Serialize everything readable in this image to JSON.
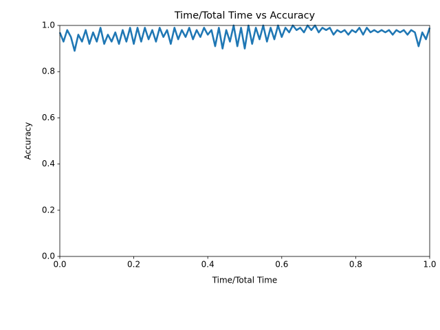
{
  "chart_data": {
    "type": "line",
    "title": "Time/Total Time vs Accuracy",
    "xlabel": "Time/Total Time",
    "ylabel": "Accuracy",
    "x": [
      0.0,
      0.01,
      0.02,
      0.03,
      0.04,
      0.05,
      0.06,
      0.07,
      0.08,
      0.09,
      0.1,
      0.11,
      0.12,
      0.13,
      0.14,
      0.15,
      0.16,
      0.17,
      0.18,
      0.19,
      0.2,
      0.21,
      0.22,
      0.23,
      0.24,
      0.25,
      0.26,
      0.27,
      0.28,
      0.29,
      0.3,
      0.31,
      0.32,
      0.33,
      0.34,
      0.35,
      0.36,
      0.37,
      0.38,
      0.39,
      0.4,
      0.41,
      0.42,
      0.43,
      0.44,
      0.45,
      0.46,
      0.47,
      0.48,
      0.49,
      0.5,
      0.51,
      0.52,
      0.53,
      0.54,
      0.55,
      0.56,
      0.57,
      0.58,
      0.59,
      0.6,
      0.61,
      0.62,
      0.63,
      0.64,
      0.65,
      0.66,
      0.67,
      0.68,
      0.69,
      0.7,
      0.71,
      0.72,
      0.73,
      0.74,
      0.75,
      0.76,
      0.77,
      0.78,
      0.79,
      0.8,
      0.81,
      0.82,
      0.83,
      0.84,
      0.85,
      0.86,
      0.87,
      0.88,
      0.89,
      0.9,
      0.91,
      0.92,
      0.93,
      0.94,
      0.95,
      0.96,
      0.97,
      0.98,
      0.99,
      1.0
    ],
    "values": [
      0.97,
      0.93,
      0.98,
      0.95,
      0.89,
      0.96,
      0.93,
      0.98,
      0.92,
      0.97,
      0.93,
      0.99,
      0.92,
      0.96,
      0.93,
      0.97,
      0.92,
      0.98,
      0.93,
      0.99,
      0.92,
      0.99,
      0.93,
      0.99,
      0.94,
      0.98,
      0.93,
      0.99,
      0.95,
      0.98,
      0.92,
      0.99,
      0.94,
      0.98,
      0.95,
      0.99,
      0.94,
      0.98,
      0.95,
      0.99,
      0.96,
      0.98,
      0.91,
      0.99,
      0.9,
      0.98,
      0.93,
      1.0,
      0.91,
      0.99,
      0.9,
      1.0,
      0.92,
      0.99,
      0.94,
      1.0,
      0.93,
      0.99,
      0.94,
      1.0,
      0.95,
      0.99,
      0.97,
      1.0,
      0.98,
      0.99,
      0.97,
      1.0,
      0.98,
      1.0,
      0.97,
      0.99,
      0.98,
      0.99,
      0.96,
      0.98,
      0.97,
      0.98,
      0.96,
      0.98,
      0.97,
      0.99,
      0.96,
      0.99,
      0.97,
      0.98,
      0.97,
      0.98,
      0.97,
      0.98,
      0.96,
      0.98,
      0.97,
      0.98,
      0.96,
      0.98,
      0.97,
      0.91,
      0.97,
      0.94,
      0.99
    ],
    "color": "#1f77b4",
    "xlim": [
      0,
      1
    ],
    "ylim": [
      0,
      1
    ],
    "xticks": [
      {
        "value": 0,
        "label": "0.0"
      },
      0.2,
      0.4,
      0.6,
      0.8,
      {
        "value": 1,
        "label": "1.0"
      }
    ],
    "yticks": [
      {
        "value": 0,
        "label": "0.0"
      },
      0.2,
      0.4,
      0.6,
      0.8,
      {
        "value": 1,
        "label": "1.0"
      }
    ],
    "grid": false
  }
}
